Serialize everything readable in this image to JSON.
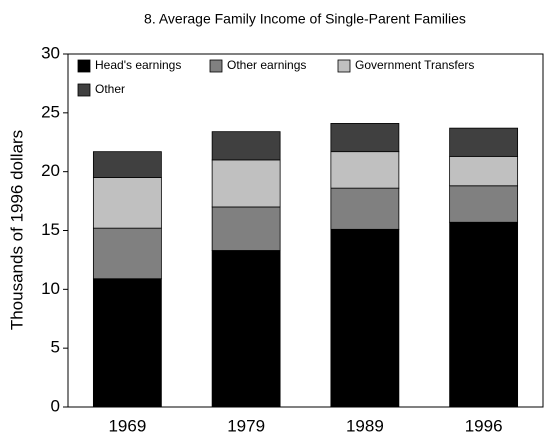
{
  "chart_data": {
    "type": "stacked_bar",
    "title": "8. Average Family Income of Single-Parent Families",
    "y_label": "Thousands of 1996 dollars",
    "categories": [
      "1969",
      "1979",
      "1989",
      "1996"
    ],
    "series": [
      {
        "name": "Head's earnings",
        "color": "#000000",
        "values": [
          10.9,
          13.3,
          15.1,
          15.7
        ]
      },
      {
        "name": "Other earnings",
        "color": "#808080",
        "values": [
          4.3,
          3.7,
          3.5,
          3.1
        ]
      },
      {
        "name": "Government Transfers",
        "color": "#c0c0c0",
        "values": [
          4.3,
          4.0,
          3.1,
          2.5
        ]
      },
      {
        "name": "Other",
        "color": "#404040",
        "values": [
          2.2,
          2.4,
          2.4,
          2.4
        ]
      }
    ],
    "ylim": [
      0,
      30
    ],
    "yticks": [
      0,
      5,
      10,
      15,
      20,
      25,
      30
    ]
  }
}
